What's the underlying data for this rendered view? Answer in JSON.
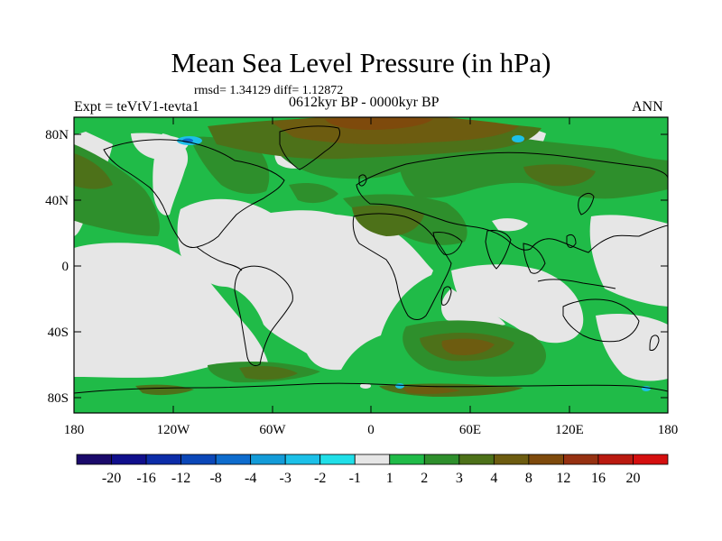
{
  "title": "Mean Sea Level Pressure (in hPa)",
  "stats": "rmsd= 1.34129 diff= 1.12872",
  "experiment": "Expt = teVtV1-tevta1",
  "period": "0612kyr BP - 0000kyr BP",
  "season": "ANN",
  "lat_labels": [
    "80N",
    "40N",
    "0",
    "40S",
    "80S"
  ],
  "lon_labels": [
    "180",
    "120W",
    "60W",
    "0",
    "60E",
    "120E",
    "180"
  ],
  "legend": {
    "labels": [
      "-20",
      "-16",
      "-12",
      "-8",
      "-4",
      "-3",
      "-2",
      "-1",
      "1",
      "2",
      "3",
      "4",
      "8",
      "12",
      "16",
      "20"
    ],
    "colors": [
      "#1b0a6b",
      "#100f8c",
      "#0c2ca8",
      "#0b47b8",
      "#0e6ccd",
      "#139bd8",
      "#1cc0e8",
      "#20dfe8",
      "#e6e6e6",
      "#20bb48",
      "#2e8f2c",
      "#4d7119",
      "#6d5c10",
      "#7e4a0c",
      "#963111",
      "#ba1a10",
      "#d50f0f"
    ]
  },
  "colors": {
    "neutral": "#e6e6e6",
    "light_green": "#20bb48",
    "mid_green": "#2e8f2c",
    "olive": "#4d7119",
    "brown": "#6d5c10",
    "dark_brown": "#7e4a0c",
    "cyan": "#1cc0e8",
    "blue": "#0e6ccd"
  }
}
